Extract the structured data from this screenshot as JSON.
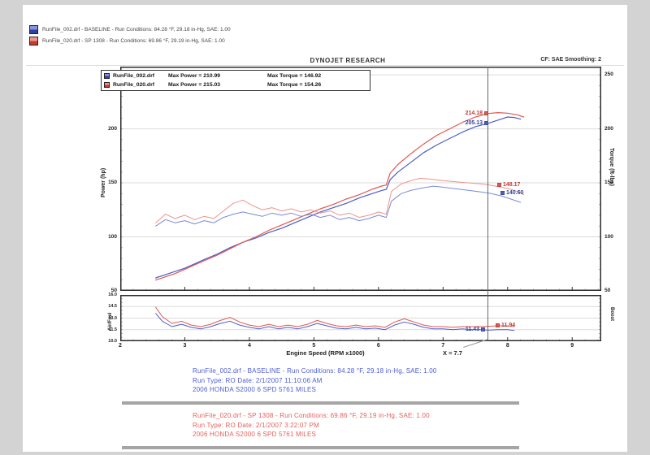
{
  "colors": {
    "blue": "#4a5ec9",
    "red": "#e2574e",
    "blue_light": "#7c8ad6",
    "red_light": "#ee938c",
    "cursor": "#666666",
    "grid": "#dbdbdb",
    "border": "#2b2b2b",
    "footer_blue": "#4b5cd6",
    "footer_red": "#e4605a"
  },
  "top_legend": {
    "rows": [
      {
        "swatch": "blue",
        "label": "RunFile_002.drf - BASELINE -  Run Conditions: 84.28 °F, 29.18 in-Hg, SAE: 1.00"
      },
      {
        "swatch": "red",
        "label": "RunFile_020.drf - SP 1308 -  Run Conditions: 69.86 °F, 29.19 in-Hg, SAE: 1.00"
      }
    ]
  },
  "header": {
    "brand": "DYNOJET RESEARCH",
    "right": "CF: SAE  Smoothing: 2"
  },
  "legend_box": {
    "rows": [
      {
        "swatch": "blue",
        "file": "RunFile_002.drf",
        "power": "Max Power = 210.99",
        "torque": "Max Torque = 146.92"
      },
      {
        "swatch": "red",
        "file": "RunFile_020.drf",
        "power": "Max Power = 215.03",
        "torque": "Max Torque = 154.26"
      }
    ]
  },
  "axes": {
    "x_title": "Engine Speed (RPM x1000)",
    "cursor_label": "X = 7.7",
    "left_title": "Power (hp)",
    "right_title": "Torque (ft-lbs)",
    "af_left_title": "Air/Fuel",
    "af_right_title": "Boost"
  },
  "cursor": {
    "rpm": 7.7,
    "power_red": "214.18",
    "power_blue": "205.13",
    "torque_red": "148.17",
    "torque_blue": "140.60",
    "af_blue": "11.43",
    "af_red": "11.94"
  },
  "footer": {
    "blue_lines": [
      "RunFile_002.drf - BASELINE -  Run Conditions: 84.28 °F, 29.18 in-Hg, SAE: 1.00",
      "Run Type: RO  Date: 2/1/2007 11:10:06 AM",
      "2006 HONDA S2000 6 SPD 5761 MILES"
    ],
    "red_lines": [
      "RunFile_020.drf - SP 1308 -  Run Conditions: 69.86 °F, 29.19 in-Hg, SAE: 1.00",
      "Run Type: RO  Date: 2/1/2007 3:22:07 PM",
      "2006 HONDA S2000 6 SPD 5761 MILES"
    ]
  },
  "chart_data": [
    {
      "type": "line",
      "panel": "main",
      "title": "DYNOJET RESEARCH",
      "xlabel": "Engine Speed (RPM x1000)",
      "ylabel_left": "Power (hp)",
      "ylabel_right": "Torque (ft-lbs)",
      "xlim": [
        2,
        9.45
      ],
      "ylim": [
        50,
        257.6
      ],
      "xticks": [
        2,
        3,
        4,
        5,
        6,
        7,
        8,
        9
      ],
      "yticks": [
        50,
        100,
        150,
        200,
        250
      ],
      "grid": true,
      "cursor_rpm": 7.7,
      "series": [
        {
          "name": "RunFile_002.drf Power (hp)",
          "color": "#4a5ec9",
          "width": 1.2,
          "points": [
            [
              2.55,
              62
            ],
            [
              2.7,
              65
            ],
            [
              2.85,
              68
            ],
            [
              3.0,
              71
            ],
            [
              3.15,
              75
            ],
            [
              3.3,
              79
            ],
            [
              3.5,
              84
            ],
            [
              3.7,
              90
            ],
            [
              3.9,
              95
            ],
            [
              4.1,
              99
            ],
            [
              4.3,
              104
            ],
            [
              4.5,
              108
            ],
            [
              4.7,
              113
            ],
            [
              4.9,
              118
            ],
            [
              5.1,
              123
            ],
            [
              5.3,
              127
            ],
            [
              5.5,
              131
            ],
            [
              5.7,
              136
            ],
            [
              5.9,
              140
            ],
            [
              6.05,
              143
            ],
            [
              6.12,
              144
            ],
            [
              6.18,
              153
            ],
            [
              6.3,
              160
            ],
            [
              6.5,
              169
            ],
            [
              6.7,
              178
            ],
            [
              6.9,
              185
            ],
            [
              7.1,
              191
            ],
            [
              7.3,
              197
            ],
            [
              7.5,
              202
            ],
            [
              7.7,
              205.13
            ],
            [
              7.9,
              209
            ],
            [
              8.0,
              210.99
            ],
            [
              8.1,
              210.5
            ],
            [
              8.2,
              209
            ]
          ]
        },
        {
          "name": "RunFile_020.drf Power (hp)",
          "color": "#e2574e",
          "width": 1.2,
          "points": [
            [
              2.55,
              60
            ],
            [
              2.7,
              63
            ],
            [
              2.85,
              66
            ],
            [
              3.0,
              70
            ],
            [
              3.15,
              74
            ],
            [
              3.3,
              78
            ],
            [
              3.5,
              83
            ],
            [
              3.7,
              89
            ],
            [
              3.9,
              95
            ],
            [
              4.1,
              100
            ],
            [
              4.3,
              106
            ],
            [
              4.5,
              111
            ],
            [
              4.7,
              116
            ],
            [
              4.9,
              121
            ],
            [
              5.1,
              126
            ],
            [
              5.3,
              130
            ],
            [
              5.5,
              135
            ],
            [
              5.7,
              139
            ],
            [
              5.9,
              144
            ],
            [
              6.05,
              147
            ],
            [
              6.12,
              148
            ],
            [
              6.18,
              159
            ],
            [
              6.3,
              167
            ],
            [
              6.5,
              177
            ],
            [
              6.7,
              186
            ],
            [
              6.9,
              194
            ],
            [
              7.1,
              200
            ],
            [
              7.3,
              206
            ],
            [
              7.5,
              211
            ],
            [
              7.7,
              214.18
            ],
            [
              7.85,
              215.03
            ],
            [
              8.0,
              214.5
            ],
            [
              8.15,
              213
            ],
            [
              8.25,
              211
            ]
          ]
        },
        {
          "name": "RunFile_002.drf Torque (ft-lbs)",
          "color": "#7c8ad6",
          "width": 1,
          "points": [
            [
              2.55,
              110
            ],
            [
              2.7,
              116
            ],
            [
              2.85,
              113
            ],
            [
              3.0,
              115
            ],
            [
              3.15,
              112
            ],
            [
              3.3,
              115
            ],
            [
              3.45,
              113
            ],
            [
              3.6,
              118
            ],
            [
              3.75,
              121
            ],
            [
              3.9,
              123
            ],
            [
              4.05,
              121
            ],
            [
              4.2,
              119
            ],
            [
              4.35,
              122
            ],
            [
              4.5,
              120
            ],
            [
              4.65,
              122
            ],
            [
              4.8,
              119
            ],
            [
              4.95,
              121
            ],
            [
              5.1,
              118
            ],
            [
              5.25,
              120
            ],
            [
              5.4,
              116
            ],
            [
              5.55,
              118
            ],
            [
              5.7,
              115
            ],
            [
              5.85,
              117
            ],
            [
              6.0,
              120
            ],
            [
              6.12,
              118
            ],
            [
              6.2,
              133
            ],
            [
              6.35,
              140
            ],
            [
              6.5,
              143
            ],
            [
              6.65,
              145
            ],
            [
              6.85,
              146.92
            ],
            [
              7.0,
              146
            ],
            [
              7.2,
              144.5
            ],
            [
              7.4,
              143
            ],
            [
              7.6,
              141.5
            ],
            [
              7.7,
              140.6
            ],
            [
              7.9,
              138
            ],
            [
              8.05,
              135
            ],
            [
              8.2,
              132
            ]
          ]
        },
        {
          "name": "RunFile_020.drf Torque (ft-lbs)",
          "color": "#ee938c",
          "width": 1,
          "points": [
            [
              2.55,
              113
            ],
            [
              2.7,
              121
            ],
            [
              2.85,
              117
            ],
            [
              3.0,
              120
            ],
            [
              3.15,
              116
            ],
            [
              3.3,
              119
            ],
            [
              3.45,
              117
            ],
            [
              3.6,
              124
            ],
            [
              3.75,
              131
            ],
            [
              3.9,
              134
            ],
            [
              4.05,
              129
            ],
            [
              4.2,
              125
            ],
            [
              4.35,
              127
            ],
            [
              4.5,
              124
            ],
            [
              4.65,
              126
            ],
            [
              4.8,
              123
            ],
            [
              4.95,
              125
            ],
            [
              5.1,
              122
            ],
            [
              5.25,
              124
            ],
            [
              5.4,
              120
            ],
            [
              5.55,
              122
            ],
            [
              5.7,
              118
            ],
            [
              5.85,
              120
            ],
            [
              6.0,
              123
            ],
            [
              6.12,
              121
            ],
            [
              6.2,
              142
            ],
            [
              6.35,
              149
            ],
            [
              6.5,
              152
            ],
            [
              6.65,
              154.26
            ],
            [
              6.8,
              153.5
            ],
            [
              7.0,
              152
            ],
            [
              7.2,
              151
            ],
            [
              7.4,
              150
            ],
            [
              7.6,
              149
            ],
            [
              7.7,
              148.17
            ],
            [
              7.9,
              146
            ],
            [
              8.05,
              144
            ],
            [
              8.2,
              141
            ],
            [
              8.25,
              139
            ]
          ]
        }
      ]
    },
    {
      "type": "line",
      "panel": "air_fuel",
      "ylabel_left": "Air/Fuel",
      "ylabel_right": "Boost",
      "xlim": [
        2,
        9.45
      ],
      "ylim": [
        10,
        16
      ],
      "xticks": [
        2,
        3,
        4,
        5,
        6,
        7,
        8,
        9
      ],
      "yticks": [
        10,
        11.5,
        13,
        14.5,
        16
      ],
      "grid": true,
      "cursor_rpm": 7.7,
      "series": [
        {
          "name": "RunFile_002.drf Air/Fuel",
          "color": "#4a5ec9",
          "width": 1,
          "points": [
            [
              2.55,
              13.6
            ],
            [
              2.65,
              12.6
            ],
            [
              2.8,
              11.9
            ],
            [
              2.95,
              12.2
            ],
            [
              3.1,
              11.8
            ],
            [
              3.25,
              11.6
            ],
            [
              3.4,
              11.9
            ],
            [
              3.55,
              12.3
            ],
            [
              3.7,
              12.6
            ],
            [
              3.85,
              12.1
            ],
            [
              4.0,
              11.8
            ],
            [
              4.15,
              11.6
            ],
            [
              4.3,
              11.9
            ],
            [
              4.45,
              11.6
            ],
            [
              4.6,
              11.8
            ],
            [
              4.75,
              11.6
            ],
            [
              4.9,
              11.9
            ],
            [
              5.05,
              12.3
            ],
            [
              5.2,
              12.0
            ],
            [
              5.35,
              11.7
            ],
            [
              5.5,
              11.6
            ],
            [
              5.65,
              11.8
            ],
            [
              5.8,
              11.6
            ],
            [
              5.95,
              11.7
            ],
            [
              6.1,
              11.5
            ],
            [
              6.25,
              12.1
            ],
            [
              6.4,
              12.5
            ],
            [
              6.55,
              12.2
            ],
            [
              6.7,
              11.8
            ],
            [
              6.85,
              11.6
            ],
            [
              7.0,
              11.6
            ],
            [
              7.15,
              11.5
            ],
            [
              7.3,
              11.6
            ],
            [
              7.45,
              11.5
            ],
            [
              7.6,
              11.5
            ],
            [
              7.7,
              11.43
            ],
            [
              7.85,
              11.5
            ],
            [
              8.0,
              11.5
            ],
            [
              8.1,
              11.4
            ]
          ]
        },
        {
          "name": "RunFile_020.drf Air/Fuel",
          "color": "#e2574e",
          "width": 1,
          "points": [
            [
              2.55,
              14.4
            ],
            [
              2.65,
              13.2
            ],
            [
              2.8,
              12.3
            ],
            [
              2.95,
              12.6
            ],
            [
              3.1,
              12.1
            ],
            [
              3.25,
              11.9
            ],
            [
              3.4,
              12.2
            ],
            [
              3.55,
              12.7
            ],
            [
              3.7,
              13.1
            ],
            [
              3.85,
              12.5
            ],
            [
              4.0,
              12.1
            ],
            [
              4.15,
              11.9
            ],
            [
              4.3,
              12.2
            ],
            [
              4.45,
              11.9
            ],
            [
              4.6,
              12.1
            ],
            [
              4.75,
              11.9
            ],
            [
              4.9,
              12.2
            ],
            [
              5.05,
              12.7
            ],
            [
              5.2,
              12.3
            ],
            [
              5.35,
              12.0
            ],
            [
              5.5,
              11.9
            ],
            [
              5.65,
              12.1
            ],
            [
              5.8,
              11.9
            ],
            [
              5.95,
              12.0
            ],
            [
              6.1,
              11.8
            ],
            [
              6.25,
              12.5
            ],
            [
              6.4,
              12.9
            ],
            [
              6.55,
              12.5
            ],
            [
              6.7,
              12.1
            ],
            [
              6.85,
              11.9
            ],
            [
              7.0,
              11.9
            ],
            [
              7.15,
              11.8
            ],
            [
              7.3,
              11.9
            ],
            [
              7.45,
              11.9
            ],
            [
              7.6,
              11.9
            ],
            [
              7.7,
              11.94
            ],
            [
              7.85,
              12.0
            ],
            [
              8.0,
              12.0
            ],
            [
              8.1,
              11.9
            ]
          ]
        }
      ]
    }
  ]
}
